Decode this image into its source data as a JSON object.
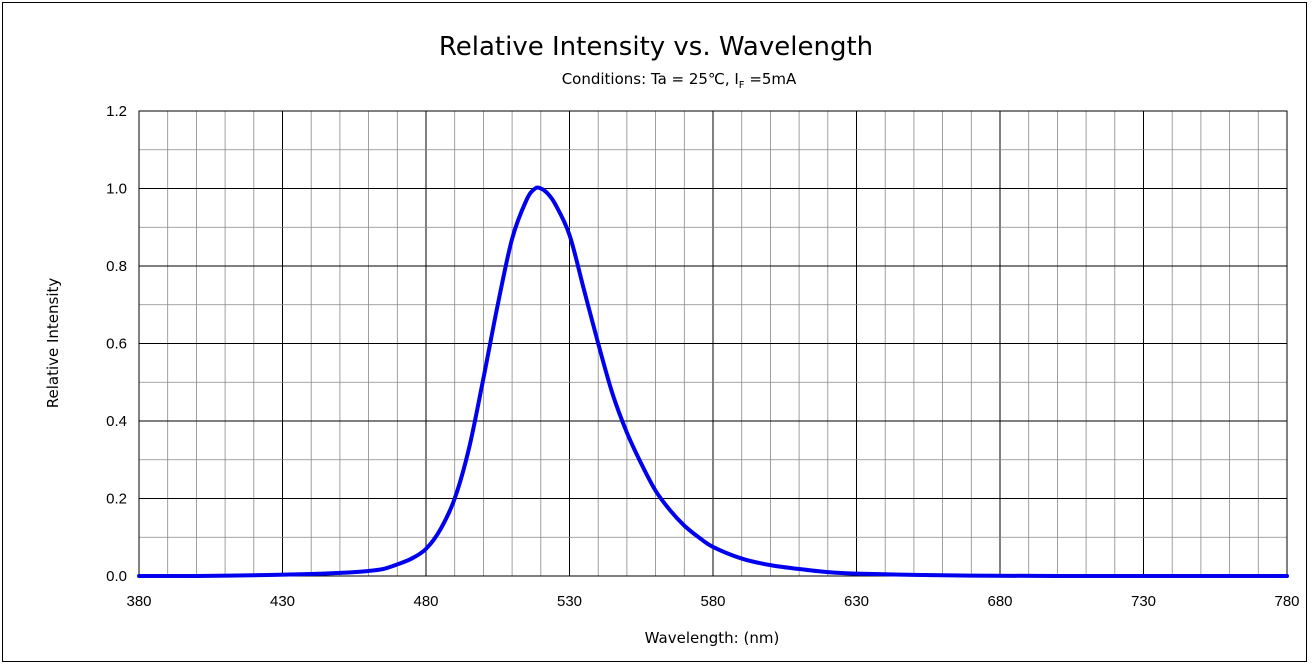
{
  "chart_data": {
    "type": "line",
    "title": "Relative Intensity vs. Wavelength",
    "subtitle": {
      "prefix": "Conditions: Ta = 25℃, I",
      "subscript": "F",
      "suffix": " =5mA"
    },
    "xlabel": "Wavelength: (nm)",
    "ylabel": "Relative Intensity",
    "xlim": [
      380,
      780
    ],
    "ylim": [
      0,
      1.2
    ],
    "x_ticks": [
      "380",
      "430",
      "480",
      "530",
      "580",
      "630",
      "680",
      "730",
      "780"
    ],
    "y_ticks": [
      "0.0",
      "0.2",
      "0.4",
      "0.6",
      "0.8",
      "1.0",
      "1.2"
    ],
    "grid": true,
    "series": [
      {
        "color": "#0000ee",
        "x": [
          380,
          400,
          420,
          440,
          450,
          460,
          465,
          470,
          475,
          480,
          485,
          490,
          495,
          500,
          505,
          510,
          515,
          518,
          520,
          522,
          525,
          530,
          535,
          540,
          545,
          550,
          555,
          560,
          565,
          570,
          575,
          580,
          590,
          600,
          610,
          620,
          630,
          650,
          670,
          700,
          740,
          780
        ],
        "y": [
          0.0,
          0.0,
          0.002,
          0.005,
          0.008,
          0.013,
          0.018,
          0.03,
          0.045,
          0.07,
          0.12,
          0.2,
          0.33,
          0.51,
          0.7,
          0.87,
          0.97,
          1.0,
          1.0,
          0.99,
          0.96,
          0.88,
          0.74,
          0.6,
          0.47,
          0.37,
          0.29,
          0.22,
          0.17,
          0.13,
          0.1,
          0.075,
          0.045,
          0.028,
          0.018,
          0.01,
          0.006,
          0.003,
          0.001,
          0.0,
          0.0,
          0.0
        ]
      }
    ]
  }
}
